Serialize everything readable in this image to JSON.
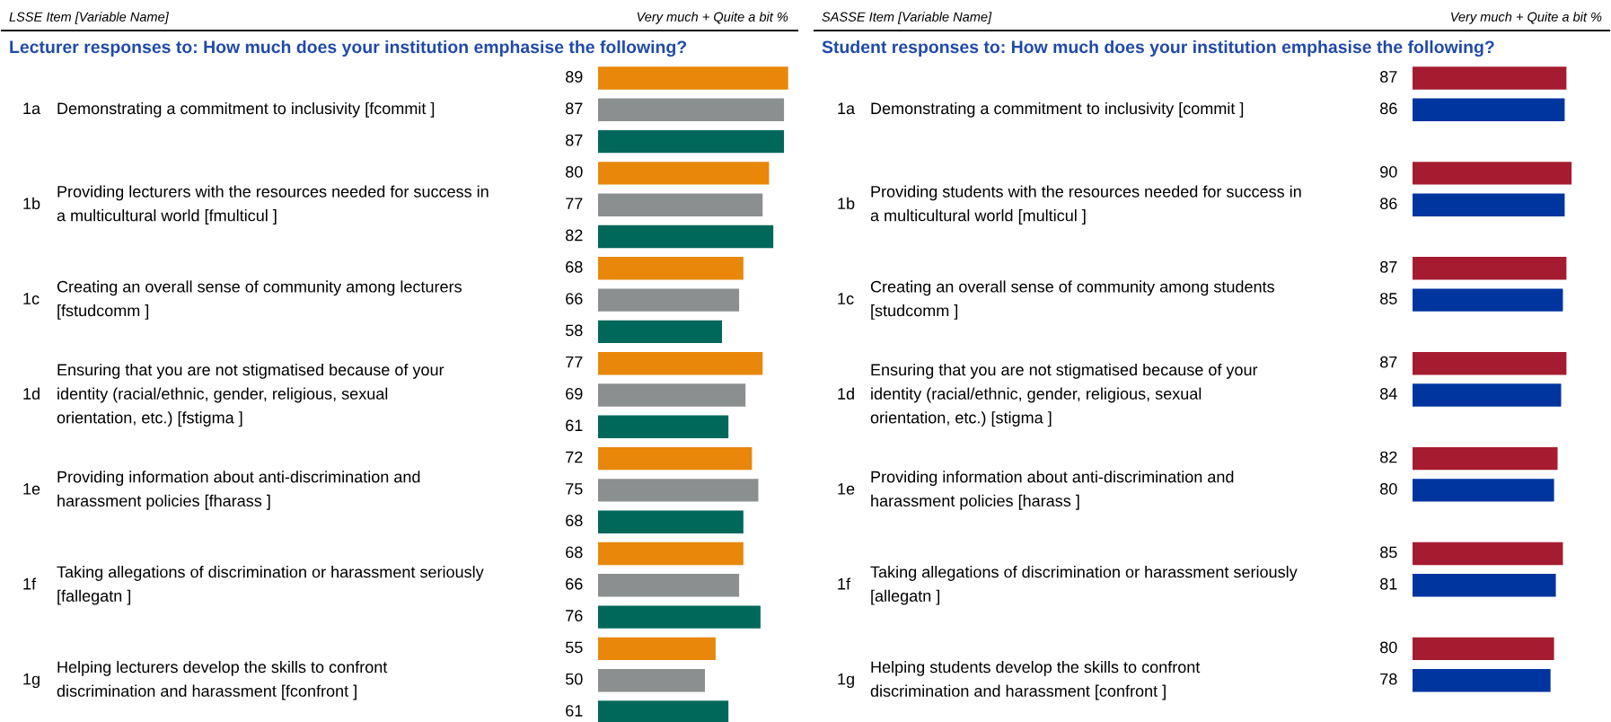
{
  "chart_data": [
    {
      "type": "bar",
      "orientation": "horizontal",
      "data_labels": true,
      "ylabel": "LSSE Item [Variable Name]",
      "xlabel": "Very much + Quite a bit %",
      "title": "Lecturer responses to: How much does your institution emphasise the following?",
      "categories": [
        "1a Demonstrating a commitment to inclusivity [fcommit ]",
        "1b Providing lecturers with the resources needed for success in\na multicultural world [fmulticul ]",
        "1c Creating an overall sense of community among lecturers\n[fstudcomm ]",
        "1d Ensuring that you are not stigmatised because of your\nidentity (racial/ethnic, gender, religious, sexual\norientation, etc.) [fstigma ]",
        "1e Providing information about anti-discrimination and\nharassment policies [fharass ]",
        "1f Taking allegations of discrimination or harassment seriously\n[fallegatn ]",
        "1g Helping lecturers develop the skills to confront\ndiscrimination and harassment [fconfront ]"
      ],
      "series": [
        {
          "color": "#e8870a",
          "values": [
            89,
            80,
            68,
            77,
            72,
            68,
            55
          ]
        },
        {
          "color": "#8c8f8f",
          "values": [
            87,
            77,
            66,
            69,
            75,
            66,
            50
          ]
        },
        {
          "color": "#00685a",
          "values": [
            87,
            82,
            58,
            61,
            68,
            76,
            61
          ]
        }
      ]
    },
    {
      "type": "bar",
      "orientation": "horizontal",
      "data_labels": true,
      "ylabel": "SASSE Item [Variable Name]",
      "xlabel": "Very much + Quite a bit %",
      "title": "Student responses to: How much does your institution emphasise the following?",
      "categories": [
        "1a Demonstrating a commitment to inclusivity [commit ]",
        "1b Providing students with the resources needed for success in\na multicultural world [multicul ]",
        "1c Creating an overall sense of community among students\n[studcomm ]",
        "1d Ensuring that you are not stigmatised because of your\nidentity (racial/ethnic, gender, religious, sexual\norientation, etc.) [stigma ]",
        "1e Providing information about anti-discrimination and\nharassment policies [harass ]",
        "1f Taking allegations of discrimination or harassment seriously\n[allegatn ]",
        "1g Helping students develop the skills to confront\ndiscrimination and harassment [confront ]"
      ],
      "series": [
        {
          "color": "#a51c30",
          "values": [
            87,
            90,
            87,
            87,
            82,
            85,
            80
          ]
        },
        {
          "color": "#0035a0",
          "values": [
            86,
            86,
            85,
            84,
            80,
            81,
            78
          ]
        }
      ]
    }
  ]
}
